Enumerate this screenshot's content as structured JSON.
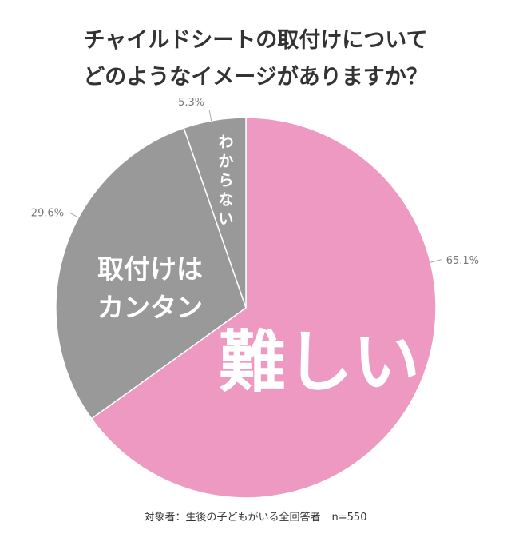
{
  "title_lines": [
    "チャイルドシートの取付けについて",
    "どのようなイメージがありますか？"
  ],
  "footnote": {
    "text": "対象者：生後の子どもがいる全回答者",
    "n": "n=550"
  },
  "chart_data": {
    "type": "pie",
    "title": "チャイルドシートの取付けについてどのようなイメージがありますか？",
    "slices": [
      {
        "label": "難しい",
        "value": 65.1,
        "value_label": "65.1%",
        "color": "#ee99c2"
      },
      {
        "label": "取付けはカンタン",
        "label_lines": [
          "取付けは",
          "カンタン"
        ],
        "value": 29.6,
        "value_label": "29.6%",
        "color": "#999999"
      },
      {
        "label": "わからない",
        "label_chars": [
          "わ",
          "か",
          "ら",
          "な",
          "い"
        ],
        "value": 5.3,
        "value_label": "5.3%",
        "color": "#999999"
      }
    ],
    "start": "12 o'clock",
    "direction": "clockwise",
    "legend": "none"
  }
}
